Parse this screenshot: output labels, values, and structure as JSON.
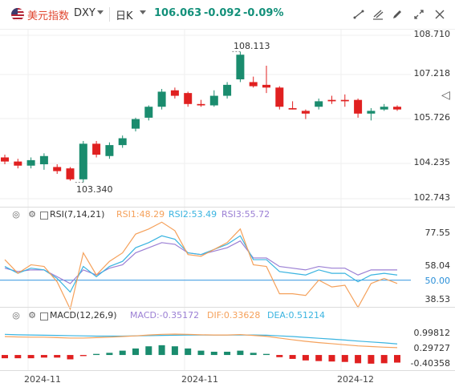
{
  "header": {
    "name": "美元指数",
    "code": "DXY",
    "period": "日K",
    "price": "106.063",
    "change": "-0.092",
    "change_pct": "-0.09%",
    "price_color": "#13907a"
  },
  "colors": {
    "up": "#1a8c6e",
    "down": "#e02020",
    "rsi1": "#f5a15b",
    "rsi2": "#3ab4e0",
    "rsi3": "#9b7fd4",
    "macd_up": "#1a8c6e",
    "macd_down": "#e02020",
    "dif": "#f5a15b",
    "dea": "#3ab4e0"
  },
  "price_axis": [
    "108.710",
    "107.218",
    "105.726",
    "104.235",
    "102.743"
  ],
  "annotations": {
    "high": "108.113",
    "low": "103.340"
  },
  "rsi": {
    "title": "RSI(7,14,21)",
    "rsi1": "RSI1:48.29",
    "rsi2": "RSI2:53.49",
    "rsi3": "RSI3:55.72",
    "axis": [
      "77.55",
      "58.04",
      "50.00",
      "38.53"
    ]
  },
  "macd": {
    "title": "MACD(12,26,9)",
    "macd": "MACD:-0.35172",
    "dif": "DIF:0.33628",
    "dea": "DEA:0.51214",
    "axis": [
      "0.99812",
      "0.29727",
      "-0.40358"
    ]
  },
  "dates": [
    "2024-11",
    "2024-11",
    "2024-12"
  ],
  "candles": [
    {
      "o": 104.25,
      "c": 104.1,
      "h": 104.35,
      "l": 104.0
    },
    {
      "o": 104.1,
      "c": 103.95,
      "h": 104.2,
      "l": 103.85
    },
    {
      "o": 103.95,
      "c": 104.15,
      "h": 104.25,
      "l": 103.85
    },
    {
      "o": 104.0,
      "c": 104.3,
      "h": 104.4,
      "l": 103.8
    },
    {
      "o": 103.9,
      "c": 103.75,
      "h": 104.0,
      "l": 103.65
    },
    {
      "o": 103.85,
      "c": 103.45,
      "h": 103.9,
      "l": 103.4
    },
    {
      "o": 103.45,
      "c": 104.75,
      "h": 104.85,
      "l": 103.34
    },
    {
      "o": 104.75,
      "c": 104.35,
      "h": 104.85,
      "l": 104.25
    },
    {
      "o": 104.3,
      "c": 104.7,
      "h": 104.8,
      "l": 104.2
    },
    {
      "o": 104.7,
      "c": 104.95,
      "h": 105.05,
      "l": 104.6
    },
    {
      "o": 105.3,
      "c": 105.65,
      "h": 105.7,
      "l": 105.2
    },
    {
      "o": 105.7,
      "c": 106.1,
      "h": 106.15,
      "l": 105.6
    },
    {
      "o": 106.1,
      "c": 106.65,
      "h": 106.75,
      "l": 106.0
    },
    {
      "o": 106.7,
      "c": 106.5,
      "h": 106.8,
      "l": 106.4
    },
    {
      "o": 106.6,
      "c": 106.2,
      "h": 106.65,
      "l": 106.1
    },
    {
      "o": 106.2,
      "c": 106.15,
      "h": 106.35,
      "l": 106.1
    },
    {
      "o": 106.15,
      "c": 106.5,
      "h": 106.7,
      "l": 106.1
    },
    {
      "o": 106.5,
      "c": 106.9,
      "h": 107.0,
      "l": 106.4
    },
    {
      "o": 107.1,
      "c": 108.0,
      "h": 108.11,
      "l": 107.0
    },
    {
      "o": 107.0,
      "c": 106.85,
      "h": 107.2,
      "l": 106.8
    },
    {
      "o": 106.9,
      "c": 106.8,
      "h": 107.6,
      "l": 106.6
    },
    {
      "o": 106.8,
      "c": 106.1,
      "h": 106.85,
      "l": 106.0
    },
    {
      "o": 106.05,
      "c": 106.0,
      "h": 106.3,
      "l": 106.0
    },
    {
      "o": 105.95,
      "c": 105.85,
      "h": 106.0,
      "l": 105.65
    },
    {
      "o": 106.1,
      "c": 106.3,
      "h": 106.4,
      "l": 106.0
    },
    {
      "o": 106.35,
      "c": 106.3,
      "h": 106.5,
      "l": 106.2
    },
    {
      "o": 106.35,
      "c": 106.3,
      "h": 106.55,
      "l": 106.1
    },
    {
      "o": 106.35,
      "c": 105.85,
      "h": 106.4,
      "l": 105.7
    },
    {
      "o": 105.85,
      "c": 105.95,
      "h": 106.05,
      "l": 105.6
    },
    {
      "o": 106.0,
      "c": 106.1,
      "h": 106.2,
      "l": 105.95
    },
    {
      "o": 106.1,
      "c": 106.0,
      "h": 106.15,
      "l": 105.95
    }
  ],
  "rsi_series": {
    "rsi1": [
      62,
      54,
      59,
      58,
      49,
      33,
      66,
      53,
      61,
      66,
      77,
      80,
      84,
      79,
      65,
      64,
      68,
      72,
      80,
      59,
      58,
      42,
      42,
      41,
      50,
      46,
      47,
      34,
      48,
      51,
      48
    ],
    "rsi2": [
      58,
      54,
      57,
      56,
      51,
      43,
      58,
      52,
      58,
      61,
      69,
      72,
      76,
      74,
      66,
      65,
      68,
      71,
      76,
      62,
      62,
      55,
      54,
      53,
      56,
      54,
      54,
      49,
      53,
      54,
      53
    ],
    "rsi3": [
      57,
      55,
      56,
      56,
      52,
      48,
      56,
      53,
      57,
      59,
      66,
      69,
      72,
      71,
      66,
      65,
      67,
      69,
      73,
      63,
      63,
      58,
      57,
      56,
      58,
      57,
      57,
      53,
      56,
      56,
      56
    ]
  },
  "macd_series": {
    "hist": [
      -0.15,
      -0.15,
      -0.15,
      -0.12,
      -0.12,
      -0.2,
      -0.05,
      0.05,
      0.1,
      0.2,
      0.3,
      0.4,
      0.45,
      0.4,
      0.3,
      0.2,
      0.15,
      0.15,
      0.2,
      0.1,
      0.05,
      -0.1,
      -0.18,
      -0.25,
      -0.28,
      -0.3,
      -0.32,
      -0.38,
      -0.4,
      -0.38,
      -0.35
    ],
    "dif": [
      0.85,
      0.83,
      0.82,
      0.82,
      0.8,
      0.78,
      0.78,
      0.8,
      0.82,
      0.85,
      0.88,
      0.92,
      0.95,
      0.96,
      0.95,
      0.93,
      0.92,
      0.92,
      0.94,
      0.9,
      0.86,
      0.78,
      0.7,
      0.63,
      0.57,
      0.52,
      0.47,
      0.42,
      0.39,
      0.36,
      0.34
    ],
    "dea": [
      0.95,
      0.93,
      0.92,
      0.91,
      0.9,
      0.89,
      0.88,
      0.87,
      0.87,
      0.87,
      0.88,
      0.89,
      0.9,
      0.91,
      0.92,
      0.92,
      0.92,
      0.92,
      0.92,
      0.92,
      0.91,
      0.88,
      0.85,
      0.81,
      0.77,
      0.73,
      0.69,
      0.64,
      0.6,
      0.56,
      0.51
    ]
  }
}
